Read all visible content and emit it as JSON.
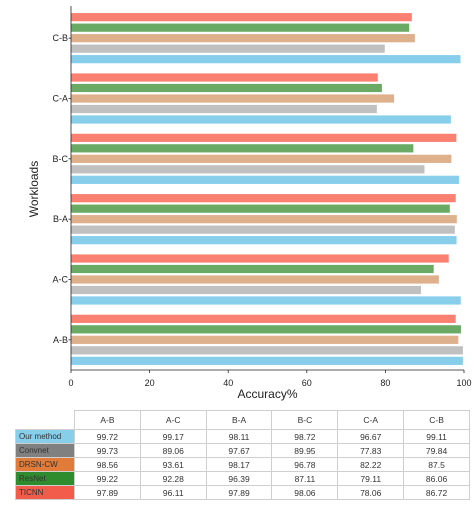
{
  "chart_data": {
    "type": "bar",
    "orientation": "horizontal",
    "xlabel": "Accuracy%",
    "ylabel": "Workloads",
    "xlim": [
      0,
      100
    ],
    "xticks": [
      "0",
      "20",
      "40",
      "60",
      "80",
      "100"
    ],
    "grid": false,
    "legend": "table-below",
    "categories": [
      "C-B",
      "C-A",
      "B-C",
      "B-A",
      "A-C",
      "A-B"
    ],
    "series": [
      {
        "name": "TICNN",
        "color": "#fa8072",
        "values": [
          86.72,
          78.06,
          98.06,
          97.89,
          96.11,
          97.89
        ]
      },
      {
        "name": "ResNet",
        "color": "#6aaa64",
        "values": [
          86.06,
          79.11,
          87.11,
          96.39,
          92.28,
          99.22
        ]
      },
      {
        "name": "DRSN-CW",
        "color": "#deb08c",
        "values": [
          87.5,
          82.22,
          96.78,
          98.17,
          93.61,
          98.56
        ]
      },
      {
        "name": "Convnet",
        "color": "#c0c0c0",
        "values": [
          79.84,
          77.83,
          89.95,
          97.67,
          89.06,
          99.73
        ]
      },
      {
        "name": "Our method",
        "color": "#87ceeb",
        "values": [
          99.11,
          96.67,
          98.72,
          98.11,
          99.17,
          99.72
        ]
      }
    ]
  },
  "table": {
    "columns": [
      "A-B",
      "A-C",
      "B-A",
      "B-C",
      "C-A",
      "C-B"
    ],
    "rows": [
      {
        "label": "Our method",
        "color": "#87ceeb",
        "values": [
          "99.72",
          "99.17",
          "98.11",
          "98.72",
          "96.67",
          "99.11"
        ]
      },
      {
        "label": "Convnet",
        "color": "#808080",
        "values": [
          "99.73",
          "89.06",
          "97.67",
          "89.95",
          "77.83",
          "79.84"
        ]
      },
      {
        "label": "DRSN-CW",
        "color": "#e07b39",
        "values": [
          "98.56",
          "93.61",
          "98.17",
          "96.78",
          "82.22",
          "87.5"
        ]
      },
      {
        "label": "ResNet",
        "color": "#2e8b2e",
        "values": [
          "99.22",
          "92.28",
          "96.39",
          "87.11",
          "79.11",
          "86.06"
        ]
      },
      {
        "label": "TICNN",
        "color": "#f25c4a",
        "values": [
          "97.89",
          "96.11",
          "97.89",
          "98.06",
          "78.06",
          "86.72"
        ]
      }
    ]
  }
}
